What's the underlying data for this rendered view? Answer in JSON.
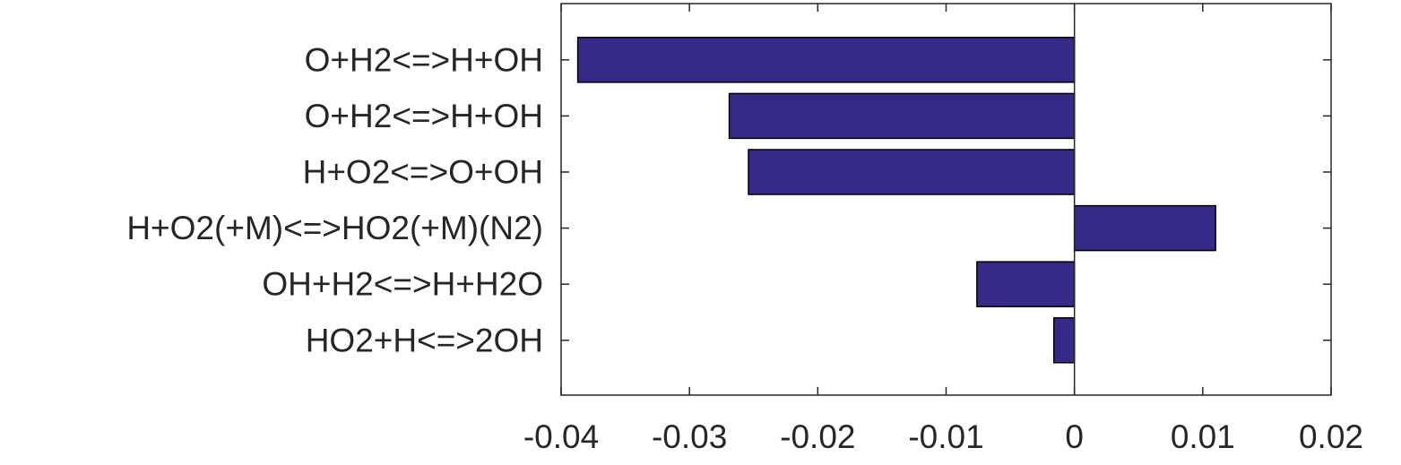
{
  "chart_data": {
    "type": "bar",
    "orientation": "horizontal",
    "categories": [
      "O+H2<=>H+OH",
      "O+H2<=>H+OH",
      "H+O2<=>O+OH",
      "H+O2(+M)<=>HO2(+M)(N2)",
      "OH+H2<=>H+H2O",
      "HO2+H<=>2OH"
    ],
    "values": [
      -0.0387,
      -0.0269,
      -0.0254,
      0.011,
      -0.0076,
      -0.0016
    ],
    "xlim": [
      -0.04,
      0.02
    ],
    "xticks": [
      "-0.04",
      "-0.03",
      "-0.02",
      "-0.01",
      "0",
      "0.01",
      "0.02"
    ],
    "xtick_values": [
      -0.04,
      -0.03,
      -0.02,
      -0.01,
      0,
      0.01,
      0.02
    ],
    "title": "",
    "xlabel": "",
    "ylabel": "",
    "grid": false,
    "bar_color": "#352A87",
    "axis_color": "#262626"
  }
}
